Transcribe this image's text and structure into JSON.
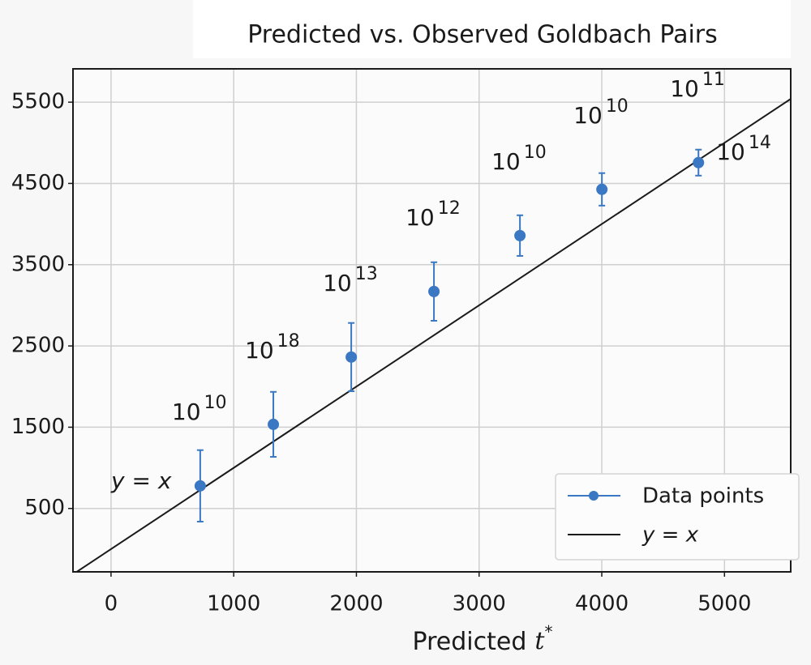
{
  "chart_data": {
    "type": "errorbar_scatter",
    "title": "Predicted vs. Observed Goldbach Pairs",
    "xlabel": {
      "text": "Predicted",
      "symbol": "t",
      "sup": "*"
    },
    "x": [
      727,
      1323,
      1958,
      2632,
      3333,
      4001,
      4788
    ],
    "series": [
      {
        "name": "Data points",
        "color": "#3a78c3",
        "values": [
          778,
          1535,
          2363,
          3170,
          3858,
          4427,
          4756
        ],
        "errors": [
          440,
          400,
          420,
          360,
          250,
          200,
          160
        ]
      }
    ],
    "point_labels": [
      {
        "base": "10",
        "exponent": "10"
      },
      {
        "base": "10",
        "exponent": "18"
      },
      {
        "base": "10",
        "exponent": "13"
      },
      {
        "base": "10",
        "exponent": "12"
      },
      {
        "base": "10",
        "exponent": "10"
      },
      {
        "base": "10",
        "exponent": "10"
      },
      {
        "base": "10",
        "exponent": "11"
      }
    ],
    "extra_label": {
      "base": "10",
      "exponent": "14"
    },
    "reference_line": {
      "name": "y = x",
      "slope": 1,
      "intercept": 0,
      "color": "#1a1a1a"
    },
    "annotations": [
      "y = x"
    ],
    "xlim": [
      -310,
      5540
    ],
    "ylim": [
      -280,
      5910
    ],
    "xticks": [
      0,
      1000,
      2000,
      3000,
      4000,
      5000
    ],
    "yticks": [
      500,
      1500,
      2500,
      3500,
      4500,
      5500
    ],
    "grid": true,
    "legend": "lower right"
  }
}
